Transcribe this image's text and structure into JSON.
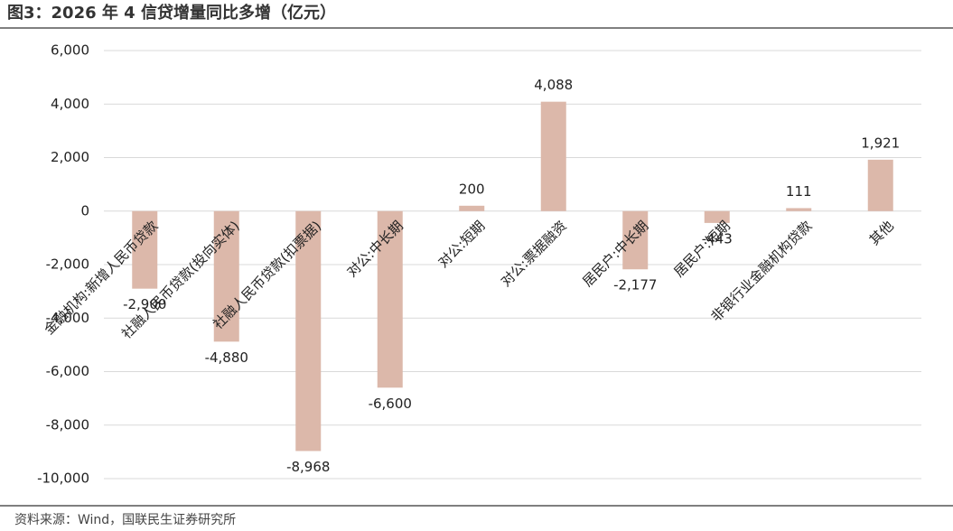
{
  "chart_data": {
    "type": "bar",
    "title": "图3：2026 年 4 信贷增量同比多增（亿元）",
    "source": "资料来源：Wind，国联民生证券研究所",
    "categories": [
      "金融机构:新增人民币贷款",
      "社融人民币贷款(投向实体)",
      "社融人民币贷款(扣票据)",
      "对公:中长期",
      "对公:短期",
      "对公:票据融资",
      "居民户:中长期",
      "居民户:短期",
      "非银行业金融机构贷款",
      "其他"
    ],
    "values": [
      -2900,
      -4880,
      -8968,
      -6600,
      200,
      4088,
      -2177,
      -443,
      111,
      1921
    ],
    "value_labels": [
      "-2,900",
      "-4,880",
      "-8,968",
      "-6,600",
      "200",
      "4,088",
      "-2,177",
      "-443",
      "111",
      "1,921"
    ],
    "color": "#dcb8aa",
    "ylim": [
      -10000,
      6000
    ],
    "yticks": [
      {
        "value": -10000,
        "label": "-10,000"
      },
      {
        "value": -8000,
        "label": "-8,000"
      },
      {
        "value": -6000,
        "label": "-6,000"
      },
      {
        "value": -4000,
        "label": "-4,000"
      },
      {
        "value": -2000,
        "label": "-2,000"
      },
      0,
      {
        "value": 2000,
        "label": "2,000"
      },
      {
        "value": 4000,
        "label": "4,000"
      },
      {
        "value": 6000,
        "label": "6,000"
      }
    ],
    "grid": true
  }
}
